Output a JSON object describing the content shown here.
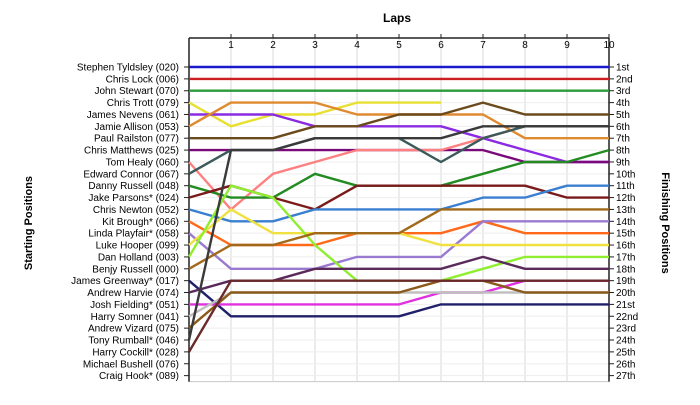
{
  "chart_data": {
    "type": "line",
    "title": "Laps",
    "ylabel_left": "Starting Positions",
    "ylabel_right": "Finishing Positions",
    "grid": true,
    "laps": [
      "1",
      "2",
      "3",
      "4",
      "5",
      "6",
      "7",
      "8",
      "9",
      "10"
    ],
    "start_labels": [
      "Stephen Tyldsley (020)",
      "Chris Lock (006)",
      "John Stewart (070)",
      "Chris Trott (079)",
      "James Nevens (061)",
      "Jamie Allison (053)",
      "Paul Railston (077)",
      "Chris Matthews (025)",
      "Tom Healy (060)",
      "Edward Connor (067)",
      "Danny Russell (048)",
      "Jake Parsons* (024)",
      "Chris Newton (052)",
      "Kit Brough* (066)",
      "Linda Playfair* (058)",
      "Luke Hooper (099)",
      "Dan Holland (003)",
      "Benjy Russell (000)",
      "James Greenway* (017)",
      "Andrew Harvie (074)",
      "Josh Fielding* (051)",
      "Harry Somner (041)",
      "Andrew Vizard (075)",
      "Tony Rumball* (046)",
      "Harry Cockill* (028)",
      "Michael Bushell (076)",
      "Craig Hook* (089)"
    ],
    "finish_labels": [
      "1st",
      "2nd",
      "3rd",
      "4th",
      "5th",
      "6th",
      "7th",
      "8th",
      "9th",
      "10th",
      "11th",
      "12th",
      "13th",
      "14th",
      "15th",
      "16th",
      "17th",
      "18th",
      "19th",
      "20th",
      "21st",
      "22nd",
      "23rd",
      "24th",
      "25th",
      "26th",
      "27th"
    ],
    "y_axis": {
      "min": 1,
      "max": 27,
      "reversed": true
    },
    "x_axis": {
      "min": 0,
      "max": 10
    },
    "series": [
      {
        "color": "#1a1acc",
        "values": [
          1,
          1,
          1,
          1,
          1,
          1,
          1,
          1,
          1,
          1,
          1
        ]
      },
      {
        "color": "#cc1f1f",
        "values": [
          2,
          2,
          2,
          2,
          2,
          2,
          2,
          2,
          2,
          2,
          2
        ]
      },
      {
        "color": "#2a9a3a",
        "values": [
          3,
          3,
          3,
          3,
          3,
          3,
          3,
          3,
          3,
          3,
          3
        ]
      },
      {
        "color": "#e8e030",
        "values": [
          4,
          6,
          5,
          5,
          4,
          4,
          4
        ]
      },
      {
        "color": "#8a2be2",
        "values": [
          5,
          5,
          5,
          6,
          6,
          6,
          6,
          7,
          8,
          9,
          9
        ]
      },
      {
        "color": "#e08a30",
        "values": [
          6,
          4,
          4,
          4,
          5,
          5,
          5,
          5,
          7,
          7,
          7
        ]
      },
      {
        "color": "#6b4a1c",
        "values": [
          7,
          7,
          7,
          6,
          6,
          5,
          5,
          4,
          5,
          5,
          5
        ]
      },
      {
        "color": "#7a0a7a",
        "values": [
          8,
          8,
          8,
          8,
          8,
          8,
          8,
          8,
          9,
          9,
          9
        ]
      },
      {
        "color": "#ff8080",
        "values": [
          9,
          13,
          10,
          9,
          8,
          8,
          8,
          7,
          6,
          6,
          6
        ]
      },
      {
        "color": "#3c5a5a",
        "values": [
          10,
          8,
          8,
          7,
          7,
          7,
          9,
          7,
          6,
          6,
          6
        ]
      },
      {
        "color": "#228b22",
        "values": [
          11,
          12,
          12,
          10,
          11,
          11,
          11,
          10,
          9,
          9,
          8
        ]
      },
      {
        "color": "#7a1a1a",
        "values": [
          12,
          11,
          12,
          13,
          11,
          11,
          11,
          11,
          11,
          12,
          12
        ]
      },
      {
        "color": "#3a7fd0",
        "values": [
          13,
          14,
          14,
          13,
          13,
          13,
          13,
          12,
          12,
          11,
          11
        ]
      },
      {
        "color": "#ff6a1a",
        "values": [
          14,
          16,
          16,
          16,
          15,
          15,
          15,
          14,
          15,
          15,
          15
        ]
      },
      {
        "color": "#9a7ad0",
        "values": [
          15,
          18,
          18,
          18,
          17,
          17,
          17,
          14,
          14,
          14,
          14
        ]
      },
      {
        "color": "#f0e040",
        "values": [
          16,
          13,
          15,
          15,
          15,
          15,
          16,
          16,
          16,
          16,
          16
        ]
      },
      {
        "color": "#90ee30",
        "values": [
          17,
          11,
          12,
          16,
          19,
          19,
          19,
          18,
          17,
          17,
          17
        ]
      },
      {
        "color": "#a06a1a",
        "values": [
          18,
          16,
          16,
          15,
          15,
          15,
          13,
          13,
          13,
          13,
          13
        ]
      },
      {
        "color": "#20206a",
        "values": [
          19,
          22,
          22,
          22,
          22,
          22,
          21,
          21,
          21,
          21,
          21
        ]
      },
      {
        "color": "#5a2a5a",
        "values": [
          20,
          19,
          19,
          18,
          18,
          18,
          18,
          17,
          18,
          18,
          18
        ]
      },
      {
        "color": "#e030e0",
        "values": [
          21,
          21,
          21,
          21,
          21,
          21,
          20,
          20,
          19,
          19,
          19
        ]
      },
      {
        "color": "#c0c0c0",
        "values": [
          22,
          20,
          20,
          20,
          20,
          20,
          20,
          20,
          20,
          20,
          20
        ]
      },
      {
        "color": "#8a5a1a",
        "values": [
          23,
          20,
          20,
          20,
          20,
          20,
          19,
          19,
          20,
          20,
          20
        ]
      },
      {
        "color": "#3a3a3a",
        "values": [
          24,
          8,
          8,
          7,
          7,
          7,
          7,
          6,
          6,
          6,
          6
        ]
      },
      {
        "color": "#6a2a2a",
        "values": [
          25,
          19,
          19,
          19,
          19,
          19,
          19,
          19,
          19,
          19,
          19
        ]
      }
    ]
  }
}
